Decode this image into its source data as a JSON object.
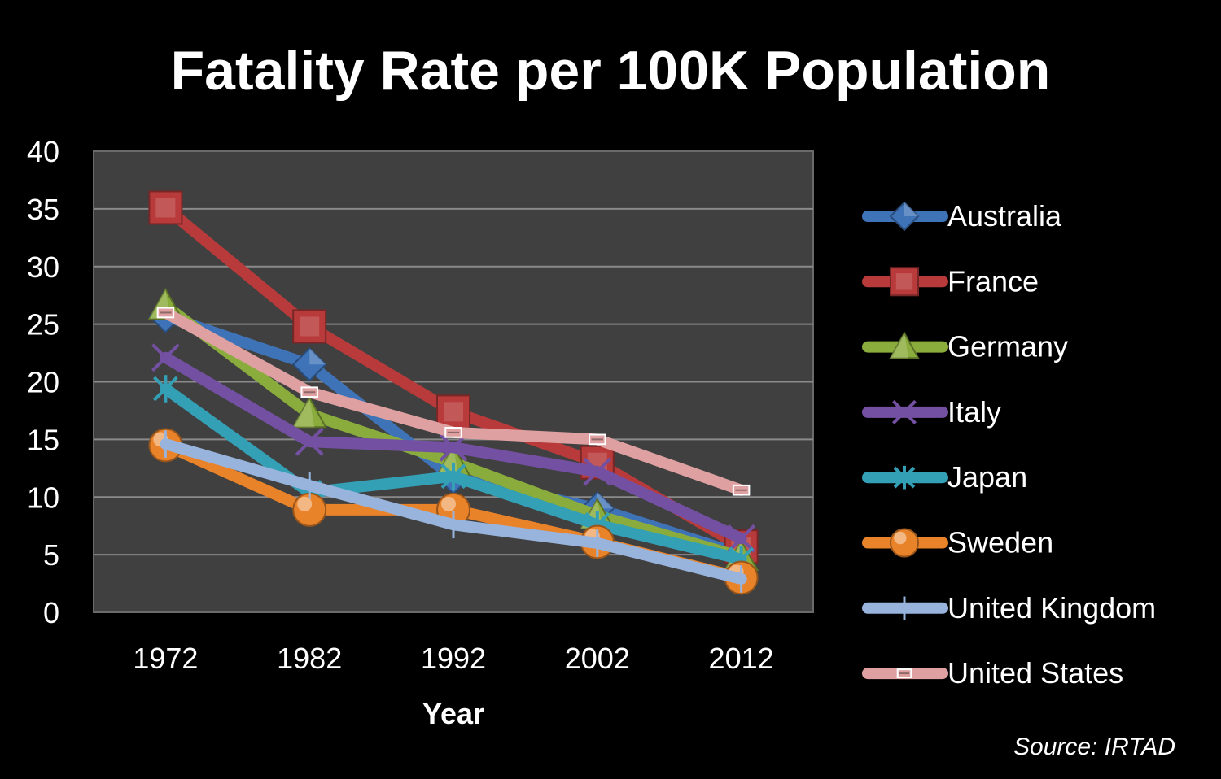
{
  "chart_data": {
    "type": "line",
    "title": "Fatality Rate per 100K Population",
    "xlabel": "Year",
    "ylabel": "",
    "x": [
      "1972",
      "1982",
      "1992",
      "2002",
      "2012"
    ],
    "ylim": [
      0,
      40
    ],
    "yticks": [
      "0",
      "5",
      "10",
      "15",
      "20",
      "25",
      "30",
      "35",
      "40"
    ],
    "grid": true,
    "legend": "right",
    "source": "Source: IRTAD",
    "series": [
      {
        "name": "Australia",
        "color": "#3f73b8",
        "marker": "diamond",
        "values": [
          25.7,
          21.5,
          11.7,
          9.0,
          5.0
        ]
      },
      {
        "name": "France",
        "color": "#b83a3a",
        "marker": "square",
        "values": [
          35.1,
          24.8,
          17.4,
          13.0,
          5.7
        ]
      },
      {
        "name": "Germany",
        "color": "#8aac3c",
        "marker": "triangle",
        "values": [
          26.6,
          17.2,
          13.0,
          8.4,
          4.8
        ]
      },
      {
        "name": "Italy",
        "color": "#7450a3",
        "marker": "x",
        "values": [
          22.1,
          14.8,
          14.3,
          12.2,
          6.4
        ]
      },
      {
        "name": "Japan",
        "color": "#34a0b6",
        "marker": "star",
        "values": [
          19.4,
          10.4,
          11.8,
          7.6,
          4.6
        ]
      },
      {
        "name": "Sweden",
        "color": "#e9832a",
        "marker": "circle",
        "values": [
          14.5,
          8.9,
          8.9,
          6.1,
          3.0
        ]
      },
      {
        "name": "United Kingdom",
        "color": "#98b4dd",
        "marker": "plus",
        "values": [
          14.6,
          11.0,
          7.6,
          6.0,
          2.9
        ]
      },
      {
        "name": "United States",
        "color": "#dea0a0",
        "marker": "dash",
        "values": [
          26.0,
          19.1,
          15.6,
          15.0,
          10.6
        ]
      }
    ]
  }
}
